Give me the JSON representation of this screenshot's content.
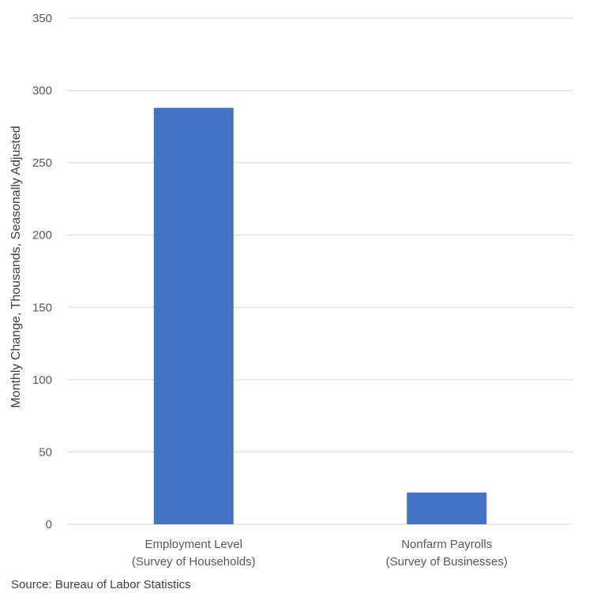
{
  "chart_data": {
    "type": "bar",
    "categories": [
      [
        "Employment Level",
        "(Survey of Households)"
      ],
      [
        "Nonfarm Payrolls",
        "(Survey of Businesses)"
      ]
    ],
    "values": [
      288,
      22
    ],
    "ylabel": "Monthly Change, Thousands, Seasonally Adjusted",
    "xlabel": "",
    "ylim": [
      0,
      350
    ],
    "yticks": [
      0,
      50,
      100,
      150,
      200,
      250,
      300,
      350
    ],
    "grid": true,
    "legend": "none",
    "bar_color": "#4472C4",
    "grid_color": "#D9D9D9",
    "source": "Source: Bureau of Labor Statistics"
  }
}
